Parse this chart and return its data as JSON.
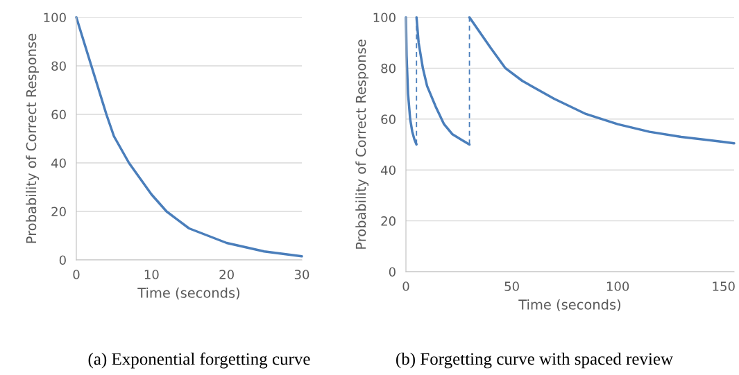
{
  "chart_data": [
    {
      "type": "line",
      "xlabel": "Time (seconds)",
      "ylabel": "Probability of Correct Response",
      "xlim": [
        0,
        30
      ],
      "xticks": [
        0,
        10,
        20,
        30
      ],
      "ylim": [
        0,
        100
      ],
      "yticks": [
        0,
        20,
        40,
        60,
        80,
        100
      ],
      "grid": "y",
      "legend": false,
      "annotations": [
        "(a) Exponential forgetting curve"
      ],
      "series": [
        {
          "color": "#4a7ebb",
          "x": [
            0,
            2,
            4,
            5,
            7,
            10,
            12,
            15,
            20,
            25,
            30
          ],
          "values": [
            100,
            80,
            60,
            51,
            40,
            27,
            20,
            13,
            7,
            3.5,
            1.5
          ]
        }
      ]
    },
    {
      "type": "line",
      "xlabel": "Time (seconds)",
      "ylabel": "Probability of Correct Response",
      "xlim": [
        0,
        155
      ],
      "xticks": [
        0,
        50,
        100,
        150
      ],
      "ylim": [
        0,
        100
      ],
      "yticks": [
        0,
        20,
        40,
        60,
        80,
        100
      ],
      "grid": "y",
      "legend": false,
      "annotations": [
        "(b) Forgetting curve with spaced review"
      ],
      "series": [
        {
          "color": "#4a7ebb",
          "x": [
            0,
            0.3,
            1,
            2,
            3,
            4,
            5
          ],
          "values": [
            100,
            85,
            70,
            60,
            55,
            52,
            50
          ]
        },
        {
          "color": "#4a7ebb",
          "x": [
            5,
            6,
            8,
            10,
            14,
            18,
            22,
            26,
            30
          ],
          "values": [
            100,
            90,
            80,
            73,
            65,
            58,
            54,
            52,
            50
          ]
        },
        {
          "color": "#4a7ebb",
          "x": [
            30,
            40,
            47,
            55,
            70,
            85,
            100,
            115,
            130,
            150,
            155
          ],
          "values": [
            100,
            88,
            80,
            75,
            68,
            62,
            58,
            55,
            53,
            51,
            50.5
          ]
        },
        {
          "color": "#4a7ebb",
          "line_style": "dashed",
          "x": [
            5,
            5
          ],
          "values": [
            50,
            100
          ]
        },
        {
          "color": "#4a7ebb",
          "line_style": "dashed",
          "x": [
            30,
            30
          ],
          "values": [
            50,
            100
          ]
        }
      ]
    }
  ]
}
